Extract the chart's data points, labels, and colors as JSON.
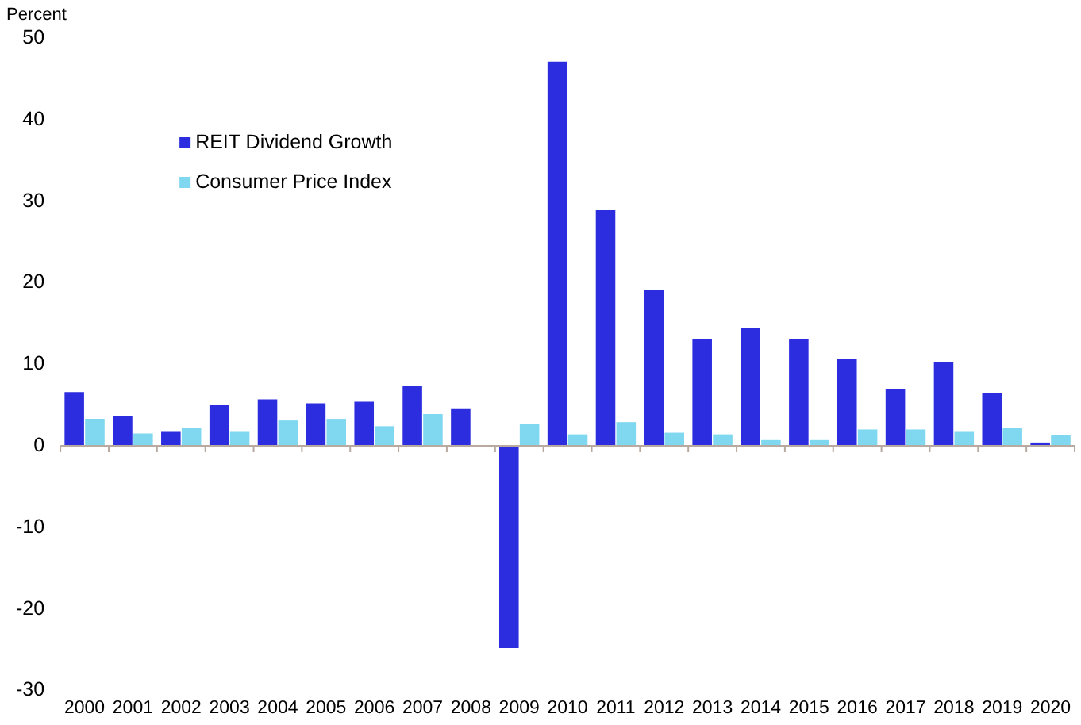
{
  "chart_data": {
    "type": "bar",
    "ylabel": "Percent",
    "categories": [
      "2000",
      "2001",
      "2002",
      "2003",
      "2004",
      "2005",
      "2006",
      "2007",
      "2008",
      "2009",
      "2010",
      "2011",
      "2012",
      "2013",
      "2014",
      "2015",
      "2016",
      "2017",
      "2018",
      "2019",
      "2020"
    ],
    "series": [
      {
        "name": "REIT Dividend Growth",
        "color": "#2d2de0",
        "values": [
          6.6,
          3.7,
          1.8,
          5.0,
          5.7,
          5.2,
          5.4,
          7.3,
          4.6,
          -24.8,
          47.1,
          28.9,
          19.1,
          13.1,
          14.5,
          13.1,
          10.7,
          7.0,
          10.3,
          6.5,
          0.4
        ]
      },
      {
        "name": "Consumer Price Index",
        "color": "#7fd8f0",
        "values": [
          3.3,
          1.5,
          2.2,
          1.8,
          3.1,
          3.3,
          2.4,
          3.9,
          null,
          2.7,
          1.4,
          2.9,
          1.6,
          1.4,
          0.7,
          0.7,
          2.0,
          2.0,
          1.8,
          2.2,
          1.3
        ]
      }
    ],
    "ylim": [
      -30,
      50
    ],
    "yticks": [
      -30,
      -20,
      -10,
      0,
      10,
      20,
      30,
      40,
      50
    ],
    "legend": "top left"
  }
}
